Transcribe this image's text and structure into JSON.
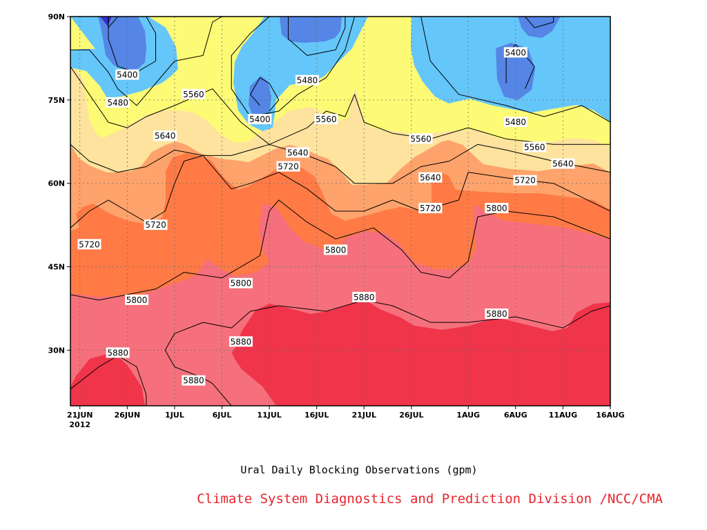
{
  "caption": "Ural Daily Blocking Observations (gpm)",
  "credit": "Climate System Diagnostics and Prediction Division /NCC/CMA",
  "colors": {
    "gt5880": "#f0344a",
    "c5800": "#f5707c",
    "c5720": "#ff7a45",
    "c5640": "#fea36b",
    "c5560": "#fde39e",
    "c5480": "#fdfa75",
    "c5400": "#65c6f9",
    "lt5400": "#5585e5",
    "lt5320": "#3a2fd0"
  },
  "chart_data": {
    "type": "contour",
    "x_ticks": [
      "21JUN",
      "26JUN",
      "1JUL",
      "6JUL",
      "11JUL",
      "16JUL",
      "21JUL",
      "26JUL",
      "1AUG",
      "6AUG",
      "11AUG",
      "16AUG"
    ],
    "x_year": "2012",
    "x_range": [
      "2012-06-20",
      "2012-08-16"
    ],
    "y_ticks": [
      "30N",
      "45N",
      "60N",
      "75N",
      "90N"
    ],
    "y_range": [
      20,
      90
    ],
    "grid": true,
    "contour_levels": [
      5320,
      5400,
      5480,
      5560,
      5640,
      5720,
      5800,
      5880
    ],
    "contours": [
      {
        "level": 5880,
        "points": [
          [
            "2012-06-20",
            23
          ],
          [
            "2012-06-23",
            27
          ],
          [
            "2012-06-25",
            29
          ],
          [
            "2012-06-27",
            27
          ],
          [
            "2012-06-28",
            22
          ],
          [
            "2012-06-28",
            20
          ]
        ]
      },
      {
        "level": 5880,
        "points": [
          [
            "2012-07-07",
            20
          ],
          [
            "2012-07-05",
            24
          ],
          [
            "2012-07-04",
            25
          ],
          [
            "2012-07-01",
            27
          ],
          [
            "2012-06-30",
            30
          ],
          [
            "2012-07-01",
            33
          ],
          [
            "2012-07-04",
            35
          ],
          [
            "2012-07-07",
            34
          ],
          [
            "2012-07-09",
            37
          ],
          [
            "2012-07-12",
            38
          ],
          [
            "2012-07-17",
            37
          ],
          [
            "2012-07-21",
            39
          ],
          [
            "2012-07-24",
            38
          ],
          [
            "2012-07-28",
            35
          ],
          [
            "2012-08-01",
            35
          ],
          [
            "2012-08-06",
            36
          ],
          [
            "2012-08-11",
            34
          ],
          [
            "2012-08-14",
            37
          ],
          [
            "2012-08-16",
            38
          ]
        ]
      },
      {
        "level": 5800,
        "points": [
          [
            "2012-06-20",
            40
          ],
          [
            "2012-06-23",
            39
          ],
          [
            "2012-06-26",
            40
          ],
          [
            "2012-06-29",
            41
          ],
          [
            "2012-07-02",
            44
          ],
          [
            "2012-07-06",
            43
          ],
          [
            "2012-07-10",
            47
          ],
          [
            "2012-07-11",
            55
          ],
          [
            "2012-07-12",
            57
          ],
          [
            "2012-07-15",
            53
          ],
          [
            "2012-07-18",
            50
          ],
          [
            "2012-07-20",
            51
          ],
          [
            "2012-07-22",
            52
          ],
          [
            "2012-07-25",
            48
          ],
          [
            "2012-07-27",
            44
          ],
          [
            "2012-07-30",
            43
          ],
          [
            "2012-08-01",
            46
          ],
          [
            "2012-08-02",
            54
          ],
          [
            "2012-08-05",
            55
          ],
          [
            "2012-08-10",
            54
          ],
          [
            "2012-08-16",
            50
          ]
        ]
      },
      {
        "level": 5720,
        "points": [
          [
            "2012-06-20",
            52
          ],
          [
            "2012-06-22",
            55
          ],
          [
            "2012-06-24",
            57
          ],
          [
            "2012-06-26",
            55
          ],
          [
            "2012-06-28",
            53
          ],
          [
            "2012-06-30",
            55
          ],
          [
            "2012-07-01",
            60
          ],
          [
            "2012-07-02",
            64
          ],
          [
            "2012-07-04",
            65
          ],
          [
            "2012-07-07",
            59
          ],
          [
            "2012-07-09",
            60
          ],
          [
            "2012-07-12",
            62
          ],
          [
            "2012-07-15",
            59
          ],
          [
            "2012-07-18",
            55
          ],
          [
            "2012-07-21",
            55
          ],
          [
            "2012-07-24",
            57
          ],
          [
            "2012-07-27",
            55
          ],
          [
            "2012-07-31",
            57
          ],
          [
            "2012-08-01",
            62
          ],
          [
            "2012-08-05",
            61
          ],
          [
            "2012-08-10",
            60
          ],
          [
            "2012-08-16",
            55
          ]
        ]
      },
      {
        "level": 5640,
        "points": [
          [
            "2012-06-20",
            67
          ],
          [
            "2012-06-22",
            64
          ],
          [
            "2012-06-25",
            62
          ],
          [
            "2012-06-28",
            63
          ],
          [
            "2012-07-01",
            66
          ],
          [
            "2012-07-04",
            65
          ],
          [
            "2012-07-07",
            65
          ],
          [
            "2012-07-11",
            67
          ],
          [
            "2012-07-15",
            65
          ],
          [
            "2012-07-18",
            63
          ],
          [
            "2012-07-20",
            60
          ],
          [
            "2012-07-24",
            60
          ],
          [
            "2012-07-27",
            63
          ],
          [
            "2012-07-30",
            64
          ],
          [
            "2012-08-02",
            67
          ],
          [
            "2012-08-05",
            66
          ],
          [
            "2012-08-10",
            64
          ],
          [
            "2012-08-16",
            62
          ]
        ]
      },
      {
        "level": 5560,
        "points": [
          [
            "2012-06-20",
            81
          ],
          [
            "2012-06-22",
            76
          ],
          [
            "2012-06-24",
            71
          ],
          [
            "2012-06-26",
            70
          ],
          [
            "2012-06-28",
            72
          ],
          [
            "2012-07-01",
            74
          ],
          [
            "2012-07-05",
            77
          ],
          [
            "2012-07-08",
            71
          ],
          [
            "2012-07-11",
            67
          ],
          [
            "2012-07-15",
            70
          ],
          [
            "2012-07-17",
            73
          ],
          [
            "2012-07-19",
            72
          ],
          [
            "2012-07-20",
            76
          ],
          [
            "2012-07-21",
            71
          ],
          [
            "2012-07-24",
            69
          ],
          [
            "2012-07-28",
            68
          ],
          [
            "2012-08-01",
            70
          ],
          [
            "2012-08-05",
            68
          ],
          [
            "2012-08-10",
            67
          ],
          [
            "2012-08-16",
            67
          ]
        ]
      },
      {
        "level": 5480,
        "points": [
          [
            "2012-06-20",
            84
          ],
          [
            "2012-06-22",
            84
          ],
          [
            "2012-06-24",
            80
          ],
          [
            "2012-06-25",
            77
          ],
          [
            "2012-06-27",
            74
          ],
          [
            "2012-06-29",
            78
          ],
          [
            "2012-07-01",
            82
          ],
          [
            "2012-07-04",
            83
          ],
          [
            "2012-07-05",
            89
          ],
          [
            "2012-07-06",
            90
          ]
        ]
      },
      {
        "level": 5480,
        "points": [
          [
            "2012-07-11",
            90
          ],
          [
            "2012-07-09",
            87
          ],
          [
            "2012-07-07",
            83
          ],
          [
            "2012-07-07",
            77
          ],
          [
            "2012-07-09",
            72
          ],
          [
            "2012-07-12",
            73
          ],
          [
            "2012-07-14",
            76
          ],
          [
            "2012-07-17",
            79
          ],
          [
            "2012-07-19",
            84
          ],
          [
            "2012-07-20",
            90
          ]
        ]
      },
      {
        "level": 5480,
        "points": [
          [
            "2012-07-27",
            90
          ],
          [
            "2012-07-28",
            82
          ],
          [
            "2012-07-31",
            76
          ],
          [
            "2012-08-05",
            74
          ],
          [
            "2012-08-09",
            72
          ],
          [
            "2012-08-13",
            74
          ],
          [
            "2012-08-16",
            71
          ]
        ]
      },
      {
        "level": 5400,
        "points": [
          [
            "2012-06-24",
            90
          ],
          [
            "2012-06-24",
            86
          ],
          [
            "2012-06-25",
            81
          ],
          [
            "2012-06-27",
            80
          ],
          [
            "2012-06-29",
            82
          ],
          [
            "2012-06-29",
            87
          ],
          [
            "2012-06-28",
            90
          ]
        ]
      },
      {
        "level": 5400,
        "points": [
          [
            "2012-07-10",
            74
          ],
          [
            "2012-07-09",
            76
          ],
          [
            "2012-07-10",
            79
          ],
          [
            "2012-07-11",
            78
          ],
          [
            "2012-07-12",
            75
          ],
          [
            "2012-07-11",
            73
          ]
        ]
      },
      {
        "level": 5400,
        "points": [
          [
            "2012-07-13",
            90
          ],
          [
            "2012-07-13",
            86
          ],
          [
            "2012-07-15",
            83
          ],
          [
            "2012-07-18",
            84
          ],
          [
            "2012-07-19",
            88
          ],
          [
            "2012-07-19",
            90
          ]
        ]
      },
      {
        "level": 5400,
        "points": [
          [
            "2012-08-05",
            78
          ],
          [
            "2012-08-05",
            83
          ],
          [
            "2012-08-06",
            85
          ],
          [
            "2012-08-08",
            81
          ],
          [
            "2012-08-07",
            77
          ]
        ]
      },
      {
        "level": 5400,
        "points": [
          [
            "2012-08-07",
            90
          ],
          [
            "2012-08-08",
            88
          ],
          [
            "2012-08-10",
            89
          ],
          [
            "2012-08-10",
            90
          ]
        ]
      },
      {
        "level": 5320,
        "points": [
          [
            "2012-06-24",
            90
          ],
          [
            "2012-06-24",
            88
          ],
          [
            "2012-06-25",
            90
          ]
        ]
      }
    ],
    "contour_labels": [
      {
        "text": "5880",
        "x": "2012-06-25",
        "y": 29.5
      },
      {
        "text": "5880",
        "x": "2012-07-03",
        "y": 24.5
      },
      {
        "text": "5880",
        "x": "2012-07-08",
        "y": 31.5
      },
      {
        "text": "5880",
        "x": "2012-07-21",
        "y": 39.5
      },
      {
        "text": "5880",
        "x": "2012-08-04",
        "y": 36.5
      },
      {
        "text": "5800",
        "x": "2012-06-27",
        "y": 39
      },
      {
        "text": "5800",
        "x": "2012-07-08",
        "y": 42
      },
      {
        "text": "5800",
        "x": "2012-07-18",
        "y": 48
      },
      {
        "text": "5800",
        "x": "2012-08-04",
        "y": 55.5
      },
      {
        "text": "5720",
        "x": "2012-06-22",
        "y": 49
      },
      {
        "text": "5720",
        "x": "2012-06-29",
        "y": 52.5
      },
      {
        "text": "5720",
        "x": "2012-07-13",
        "y": 63
      },
      {
        "text": "5720",
        "x": "2012-07-28",
        "y": 55.5
      },
      {
        "text": "5720",
        "x": "2012-08-07",
        "y": 60.5
      },
      {
        "text": "5640",
        "x": "2012-06-30",
        "y": 68.5
      },
      {
        "text": "5640",
        "x": "2012-07-14",
        "y": 65.5
      },
      {
        "text": "5640",
        "x": "2012-07-28",
        "y": 61
      },
      {
        "text": "5640",
        "x": "2012-08-11",
        "y": 63.5
      },
      {
        "text": "5560",
        "x": "2012-07-03",
        "y": 76
      },
      {
        "text": "5560",
        "x": "2012-07-17",
        "y": 71.5
      },
      {
        "text": "5560",
        "x": "2012-07-27",
        "y": 68
      },
      {
        "text": "5560",
        "x": "2012-08-08",
        "y": 66.5
      },
      {
        "text": "5480",
        "x": "2012-06-25",
        "y": 74.5
      },
      {
        "text": "5480",
        "x": "2012-07-15",
        "y": 78.5
      },
      {
        "text": "5480",
        "x": "2012-08-06",
        "y": 71
      },
      {
        "text": "5400",
        "x": "2012-06-26",
        "y": 79.5
      },
      {
        "text": "5400",
        "x": "2012-07-10",
        "y": 71.5
      },
      {
        "text": "5400",
        "x": "2012-08-06",
        "y": 83.5
      }
    ]
  }
}
